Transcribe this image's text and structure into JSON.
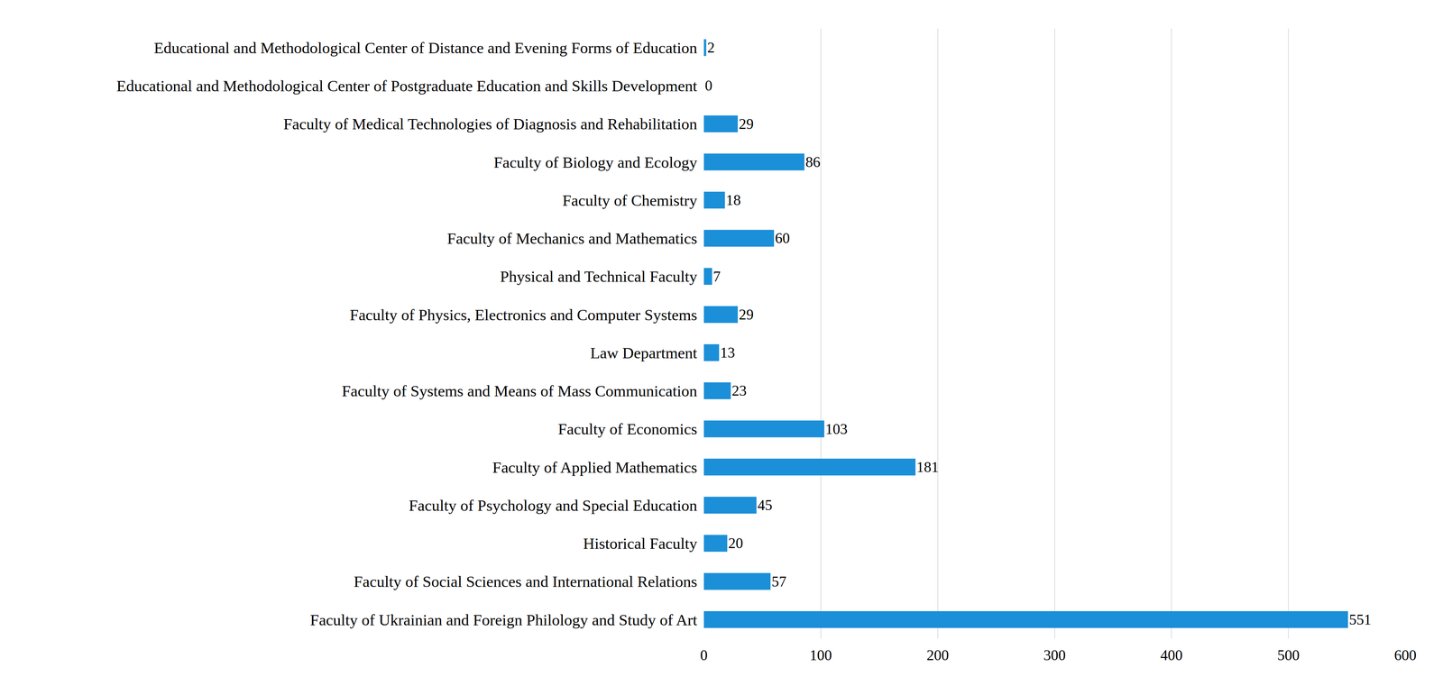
{
  "chart_data": {
    "type": "bar",
    "orientation": "horizontal",
    "categories": [
      "Educational and Methodological Center of Distance and Evening Forms of Education",
      "Educational and Methodological Center of Postgraduate Education and Skills Development",
      "Faculty of Medical Technologies of Diagnosis and Rehabilitation",
      "Faculty of Biology and Ecology",
      "Faculty of Chemistry",
      "Faculty of Mechanics and Mathematics",
      "Physical and Technical Faculty",
      "Faculty of Physics, Electronics and Computer Systems",
      "Law Department",
      "Faculty of Systems and Means of Mass Communication",
      "Faculty of Economics",
      "Faculty of Applied Mathematics",
      "Faculty of Psychology and Special Education",
      "Historical Faculty",
      "Faculty of Social Sciences and International Relations",
      "Faculty of Ukrainian and Foreign Philology and Study of Art"
    ],
    "values": [
      2,
      0,
      29,
      86,
      18,
      60,
      7,
      29,
      13,
      23,
      103,
      181,
      45,
      20,
      57,
      551
    ],
    "color": "#1b8fd8",
    "xlim": [
      0,
      600
    ],
    "xticks": [
      0,
      100,
      200,
      300,
      400,
      500,
      600
    ],
    "grid": true,
    "data_labels": true
  }
}
